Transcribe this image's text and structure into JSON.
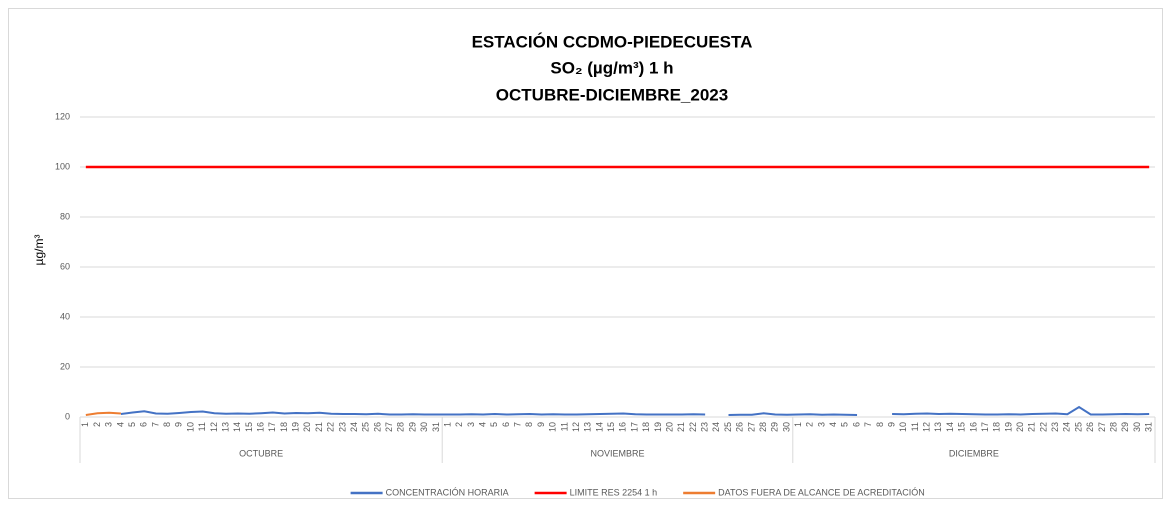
{
  "chart_data": {
    "type": "line",
    "title": [
      "ESTACIÓN CCDMO-PIEDECUESTA",
      "SO₂ (µg/m³) 1 h",
      "OCTUBRE-DICIEMBRE_2023"
    ],
    "y_label": "µg/m³",
    "groups": [
      {
        "name": "OCTUBRE",
        "categories": [
          "1",
          "2",
          "3",
          "4",
          "5",
          "6",
          "7",
          "8",
          "9",
          "10",
          "11",
          "12",
          "13",
          "14",
          "15",
          "16",
          "17",
          "18",
          "19",
          "20",
          "21",
          "22",
          "23",
          "24",
          "25",
          "26",
          "27",
          "28",
          "29",
          "30",
          "31"
        ]
      },
      {
        "name": "NOVIEMBRE",
        "categories": [
          "1",
          "2",
          "3",
          "4",
          "5",
          "6",
          "7",
          "8",
          "9",
          "10",
          "11",
          "12",
          "13",
          "14",
          "15",
          "16",
          "17",
          "18",
          "19",
          "20",
          "21",
          "22",
          "23",
          "24",
          "25",
          "26",
          "27",
          "28",
          "29",
          "30"
        ]
      },
      {
        "name": "DICIEMBRE",
        "categories": [
          "1",
          "2",
          "3",
          "4",
          "5",
          "6",
          "7",
          "8",
          "9",
          "10",
          "11",
          "12",
          "13",
          "14",
          "15",
          "16",
          "17",
          "18",
          "19",
          "20",
          "21",
          "22",
          "23",
          "24",
          "25",
          "26",
          "27",
          "28",
          "29",
          "30",
          "31"
        ]
      }
    ],
    "series": [
      {
        "name": "CONCENTRACIÓN HORARIA",
        "color": "#4472c4",
        "values": [
          null,
          null,
          null,
          1.2,
          1.8,
          2.3,
          1.4,
          1.3,
          1.6,
          2.0,
          2.2,
          1.5,
          1.3,
          1.4,
          1.3,
          1.5,
          1.8,
          1.4,
          1.6,
          1.5,
          1.7,
          1.3,
          1.2,
          1.2,
          1.1,
          1.3,
          1.0,
          1.0,
          1.1,
          1.0,
          1.0,
          1.0,
          1.0,
          1.1,
          1.0,
          1.2,
          1.0,
          1.1,
          1.2,
          1.0,
          1.1,
          1.0,
          1.0,
          1.1,
          1.2,
          1.3,
          1.4,
          1.1,
          1.0,
          1.0,
          1.0,
          1.0,
          1.1,
          1.0,
          null,
          0.8,
          0.9,
          0.9,
          1.5,
          1.0,
          0.9,
          1.0,
          1.1,
          0.9,
          1.0,
          0.9,
          0.8,
          null,
          null,
          1.2,
          1.1,
          1.3,
          1.4,
          1.2,
          1.3,
          1.2,
          1.1,
          1.0,
          1.0,
          1.1,
          1.0,
          1.2,
          1.3,
          1.4,
          1.1,
          4.0,
          1.0,
          1.0,
          1.1,
          1.2,
          1.1,
          1.2
        ]
      },
      {
        "name": "LIMITE RES 2254 1 h",
        "color": "#ff0000",
        "values": [
          100,
          100,
          100,
          100,
          100,
          100,
          100,
          100,
          100,
          100,
          100,
          100,
          100,
          100,
          100,
          100,
          100,
          100,
          100,
          100,
          100,
          100,
          100,
          100,
          100,
          100,
          100,
          100,
          100,
          100,
          100,
          100,
          100,
          100,
          100,
          100,
          100,
          100,
          100,
          100,
          100,
          100,
          100,
          100,
          100,
          100,
          100,
          100,
          100,
          100,
          100,
          100,
          100,
          100,
          100,
          100,
          100,
          100,
          100,
          100,
          100,
          100,
          100,
          100,
          100,
          100,
          100,
          100,
          100,
          100,
          100,
          100,
          100,
          100,
          100,
          100,
          100,
          100,
          100,
          100,
          100,
          100,
          100,
          100,
          100,
          100,
          100,
          100,
          100,
          100,
          100,
          100
        ]
      },
      {
        "name": "DATOS FUERA DE ALCANCE DE ACREDITACIÓN",
        "color": "#ed7d31",
        "values": [
          0.8,
          1.5,
          1.7,
          1.4,
          null,
          null,
          null,
          null,
          null,
          null,
          null,
          null,
          null,
          null,
          null,
          null,
          null,
          null,
          null,
          null,
          null,
          null,
          null,
          null,
          null,
          null,
          null,
          null,
          null,
          null,
          null,
          null,
          null,
          null,
          null,
          null,
          null,
          null,
          null,
          null,
          null,
          null,
          null,
          null,
          null,
          null,
          null,
          null,
          null,
          null,
          null,
          null,
          null,
          null,
          null,
          null,
          null,
          null,
          null,
          null,
          null,
          null,
          null,
          null,
          null,
          null,
          null,
          null,
          null,
          null,
          null,
          null,
          null,
          null,
          null,
          null,
          null,
          null,
          null,
          null,
          null,
          null,
          null,
          null,
          null,
          null,
          null,
          null,
          null,
          null,
          null,
          null
        ]
      }
    ],
    "ylim": [
      0,
      120
    ],
    "yticks": [
      0,
      20,
      40,
      60,
      80,
      100,
      120
    ],
    "grid": true,
    "legend": "bottom"
  }
}
